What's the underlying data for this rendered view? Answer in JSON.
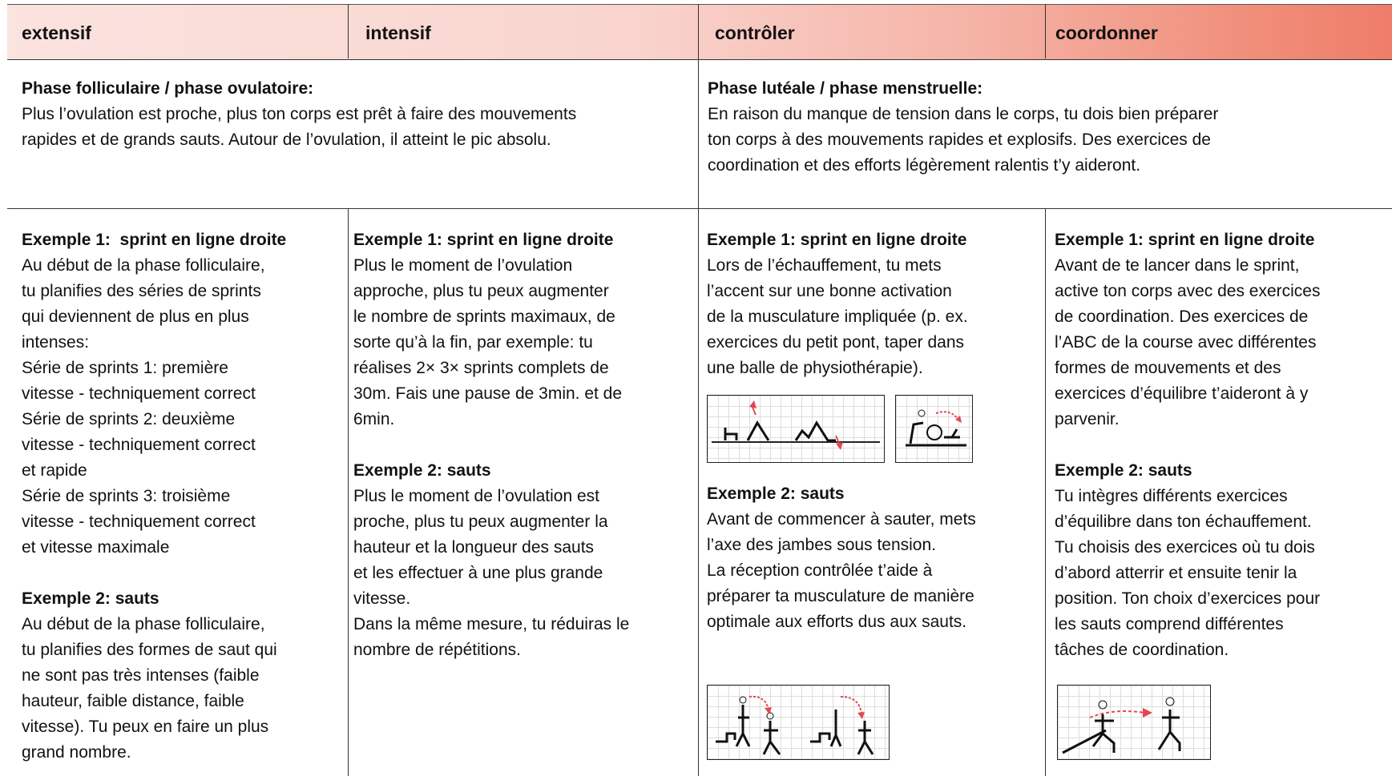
{
  "header": {
    "cells": [
      "extensif",
      "intensif",
      "contrôler",
      "coordonner"
    ]
  },
  "phases": [
    {
      "title": "Phase folliculaire / phase ovulatoire:",
      "lines": [
        "Plus l’ovulation est proche, plus ton corps est prêt à faire des mouvements",
        "rapides et de grands sauts. Autour de l’ovulation, il atteint le pic absolu."
      ]
    },
    {
      "title": "Phase lutéale / phase menstruelle:",
      "lines": [
        "En raison du manque de tension dans le corps, tu dois bien préparer",
        "ton corps à des mouvements rapides et explosifs. Des exercices de",
        "coordination et des efforts légèrement ralentis t’y aideront."
      ]
    }
  ],
  "columns": [
    {
      "blocks": [
        {
          "heading": "Exemple 1:  sprint en ligne droite",
          "lines": [
            "Au début de la phase folliculaire,",
            "tu planifies des séries de sprints",
            "qui deviennent de plus en plus",
            "intenses:",
            "Série de sprints 1: première",
            "vitesse - techniquement correct",
            "Série de sprints 2: deuxième",
            "vitesse - techniquement correct",
            "et rapide",
            "Série de sprints 3: troisième",
            "vitesse - techniquement correct",
            "et vitesse maximale"
          ]
        },
        {
          "heading": "Exemple 2: sauts",
          "lines": [
            "Au début de la phase folliculaire,",
            "tu planifies des formes de saut qui",
            "ne sont pas très intenses (faible",
            "hauteur, faible distance, faible",
            "vitesse). Tu peux en faire un plus",
            "grand nombre."
          ]
        }
      ]
    },
    {
      "blocks": [
        {
          "heading": "Exemple 1: sprint en ligne droite",
          "lines": [
            "Plus le moment de l’ovulation",
            "approche, plus tu peux augmenter",
            "le nombre de sprints maximaux, de",
            "sorte qu’à la fin, par exemple: tu",
            "réalises 2× 3× sprints complets de",
            "30m. Fais une pause de 3min. et de",
            "6min."
          ]
        },
        {
          "heading": "Exemple 2: sauts",
          "lines": [
            "Plus le moment de l’ovulation est",
            "proche, plus tu peux augmenter la",
            "hauteur et la longueur des sauts",
            "et les effectuer à une plus grande",
            "vitesse.",
            "Dans la même mesure, tu réduiras le",
            "nombre de répétitions."
          ]
        }
      ]
    },
    {
      "blocks": [
        {
          "heading": "Exemple 1: sprint en ligne droite",
          "lines": [
            "Lors de l’échauffement, tu mets",
            "l’accent sur une bonne activation",
            "de la musculature impliquée (p. ex.",
            "exercices du petit pont, taper dans",
            "une balle de physiothérapie)."
          ]
        },
        {
          "heading": "Exemple 2: sauts",
          "lines": [
            "Avant de commencer à sauter, mets",
            "l’axe des jambes sous tension.",
            "La réception contrôlée t’aide à",
            "préparer ta musculature de manière",
            "optimale aux efforts dus aux sauts."
          ]
        }
      ]
    },
    {
      "blocks": [
        {
          "heading": "Exemple 1: sprint en ligne droite",
          "lines": [
            "Avant de te lancer dans le sprint,",
            "active ton corps avec des exercices",
            "de coordination. Des exercices de",
            "l’ABC de la course avec différentes",
            "formes de mouvements et des",
            "exercices d’équilibre t’aideront à y",
            "parvenir."
          ]
        },
        {
          "heading": "Exemple 2: sauts",
          "lines": [
            "Tu intègres différents exercices",
            "d’équilibre dans ton échauffement.",
            "Tu choisis des exercices où tu dois",
            "d’abord atterrir et ensuite tenir la",
            "position. Ton choix d’exercices pour",
            "les sauts comprend différentes",
            "tâches de coordination."
          ]
        }
      ]
    }
  ]
}
